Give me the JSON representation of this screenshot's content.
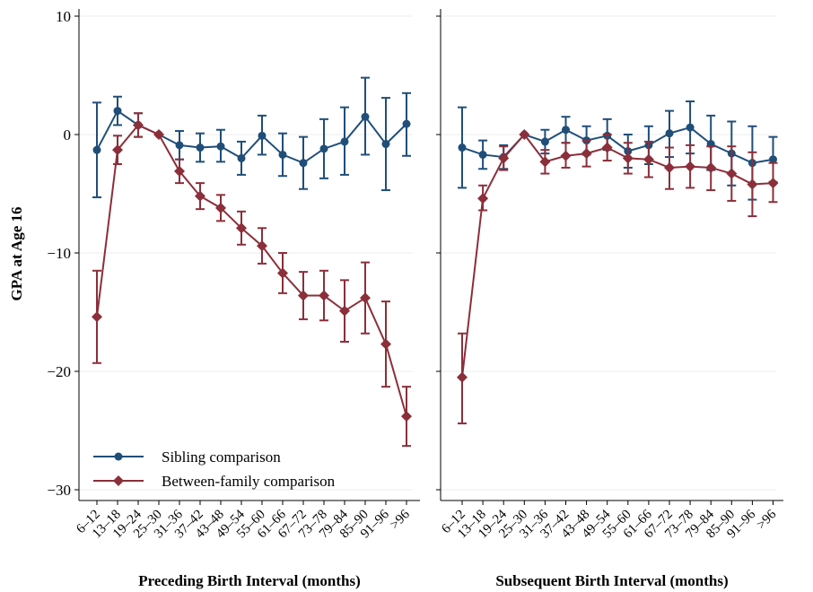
{
  "colors": {
    "sibling": "#1f4e79",
    "between": "#8b2f3a"
  },
  "chart_data": [
    {
      "type": "line",
      "xlabel": "Preceding Birth Interval (months)",
      "ylabel": "GPA at Age 16",
      "ylim": [
        -31,
        10.5
      ],
      "yticks": [
        10,
        0,
        -10,
        -20,
        -30
      ],
      "ytick_labels": [
        "10",
        "0",
        "−10",
        "−20",
        "−30"
      ],
      "categories": [
        "6–12",
        "13–18",
        "19–24",
        "25–30",
        "31–36",
        "37–42",
        "43–48",
        "49–54",
        "55–60",
        "61–66",
        "67–72",
        "73–78",
        "79–84",
        "85–90",
        "91–96",
        ">96"
      ],
      "grid": true,
      "legend": "bottom-left",
      "series": [
        {
          "name": "Sibling comparison",
          "color_key": "sibling",
          "marker": "circle",
          "values": [
            -1.3,
            2.0,
            0.8,
            0.0,
            -0.9,
            -1.1,
            -1.0,
            -2.0,
            -0.1,
            -1.7,
            -2.4,
            -1.2,
            -0.6,
            1.5,
            -0.8,
            0.9
          ],
          "lower": [
            -5.3,
            0.8,
            -0.2,
            0.0,
            -2.1,
            -2.3,
            -2.3,
            -3.4,
            -1.7,
            -3.5,
            -4.6,
            -3.7,
            -3.4,
            -1.7,
            -4.7,
            -1.8
          ],
          "upper": [
            2.7,
            3.2,
            1.8,
            0.0,
            0.3,
            0.1,
            0.4,
            -0.6,
            1.6,
            0.1,
            -0.2,
            1.3,
            2.3,
            4.8,
            3.1,
            3.5
          ]
        },
        {
          "name": "Between-family comparison",
          "color_key": "between",
          "marker": "diamond",
          "values": [
            -15.4,
            -1.3,
            0.8,
            0.0,
            -3.1,
            -5.2,
            -6.2,
            -7.9,
            -9.4,
            -11.7,
            -13.6,
            -13.6,
            -14.9,
            -13.8,
            -17.7,
            -23.8
          ],
          "lower": [
            -19.3,
            -2.5,
            -0.2,
            0.0,
            -4.1,
            -6.3,
            -7.3,
            -9.3,
            -10.9,
            -13.4,
            -15.6,
            -15.7,
            -17.5,
            -16.8,
            -21.3,
            -26.3
          ],
          "upper": [
            -11.5,
            -0.1,
            1.8,
            0.0,
            -2.1,
            -4.1,
            -5.1,
            -6.5,
            -7.9,
            -10.0,
            -11.6,
            -11.5,
            -12.3,
            -10.8,
            -14.1,
            -21.3
          ]
        }
      ]
    },
    {
      "type": "line",
      "xlabel": "Subsequent Birth Interval (months)",
      "ylabel": "",
      "ylim": [
        -31,
        10.5
      ],
      "categories": [
        "6–12",
        "13–18",
        "19–24",
        "25–30",
        "31–36",
        "37–42",
        "43–48",
        "49–54",
        "55–60",
        "61–66",
        "67–72",
        "73–78",
        "79–84",
        "85–90",
        "91–96",
        ">96"
      ],
      "grid": true,
      "series": [
        {
          "name": "Sibling comparison",
          "color_key": "sibling",
          "marker": "circle",
          "values": [
            -1.1,
            -1.7,
            -1.9,
            0.0,
            -0.6,
            0.4,
            -0.5,
            -0.1,
            -1.4,
            -0.9,
            0.1,
            0.6,
            -0.8,
            -1.6,
            -2.4,
            -2.1
          ],
          "lower": [
            -4.5,
            -2.9,
            -2.9,
            0.0,
            -1.6,
            -0.7,
            -1.7,
            -1.3,
            -2.8,
            -2.5,
            -1.9,
            -1.6,
            -3.0,
            -4.3,
            -5.5,
            -4.0
          ],
          "upper": [
            2.3,
            -0.5,
            -0.9,
            0.0,
            0.4,
            1.5,
            0.7,
            1.3,
            0.0,
            0.7,
            2.0,
            2.8,
            1.6,
            1.1,
            0.7,
            -0.2
          ]
        },
        {
          "name": "Between-family comparison",
          "color_key": "between",
          "marker": "diamond",
          "values": [
            -20.5,
            -5.4,
            -2.0,
            0.0,
            -2.3,
            -1.8,
            -1.6,
            -1.1,
            -2.0,
            -2.1,
            -2.8,
            -2.7,
            -2.8,
            -3.3,
            -4.2,
            -4.1
          ],
          "lower": [
            -24.4,
            -6.4,
            -3.0,
            0.0,
            -3.3,
            -2.8,
            -2.7,
            -2.2,
            -3.3,
            -3.6,
            -4.6,
            -4.5,
            -4.7,
            -5.6,
            -6.9,
            -5.7
          ],
          "upper": [
            -16.8,
            -4.3,
            -1.0,
            0.0,
            -1.3,
            -0.7,
            -0.5,
            0.0,
            -0.7,
            -0.6,
            -1.1,
            -0.9,
            -1.0,
            -1.0,
            -1.5,
            -2.4
          ]
        }
      ]
    }
  ]
}
